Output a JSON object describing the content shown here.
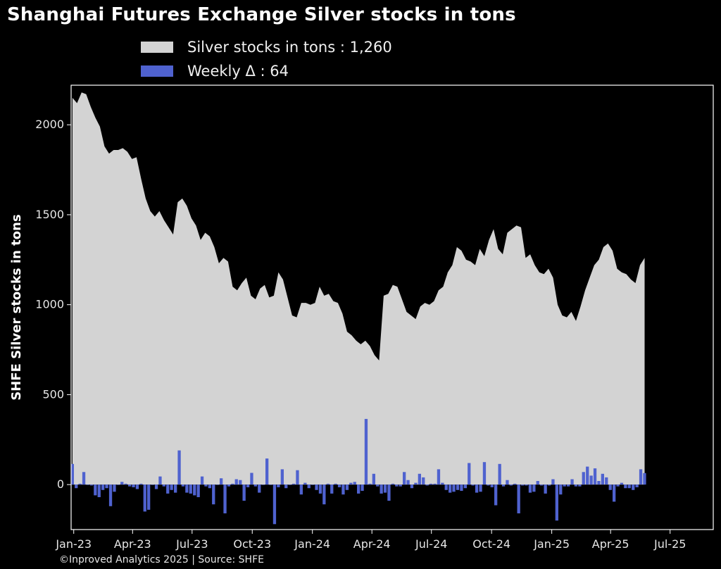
{
  "chart_data": {
    "type": "area+bar",
    "title": "Shanghai Futures Exchange Silver stocks in tons",
    "ylabel": "SHFE Silver stocks in tons",
    "ylim": [
      -250,
      2220
    ],
    "yticks": [
      0,
      500,
      1000,
      1500,
      2000
    ],
    "x_tick_labels": [
      "Jan-23",
      "Apr-23",
      "Jul-23",
      "Oct-23",
      "Jan-24",
      "Apr-24",
      "Jul-24",
      "Oct-24",
      "Jan-25",
      "Apr-25",
      "Jul-25"
    ],
    "x_tick_dates": [
      "2023-01-01",
      "2023-04-01",
      "2023-07-01",
      "2023-10-01",
      "2024-01-01",
      "2024-04-01",
      "2024-07-01",
      "2024-10-01",
      "2025-01-01",
      "2025-04-01",
      "2025-07-01"
    ],
    "x_range": [
      "2022-12-28",
      "2025-09-05"
    ],
    "series": [
      {
        "name": "Silver stocks in tons",
        "legend": "Silver stocks in tons : 1,260",
        "color": "#d3d3d3",
        "points": [
          [
            "2022-12-30",
            2150
          ],
          [
            "2023-01-06",
            2120
          ],
          [
            "2023-01-13",
            2180
          ],
          [
            "2023-01-20",
            2170
          ],
          [
            "2023-01-27",
            2100
          ],
          [
            "2023-02-03",
            2040
          ],
          [
            "2023-02-10",
            1990
          ],
          [
            "2023-02-17",
            1880
          ],
          [
            "2023-02-24",
            1840
          ],
          [
            "2023-03-03",
            1860
          ],
          [
            "2023-03-10",
            1860
          ],
          [
            "2023-03-17",
            1870
          ],
          [
            "2023-03-24",
            1850
          ],
          [
            "2023-03-31",
            1810
          ],
          [
            "2023-04-07",
            1820
          ],
          [
            "2023-04-14",
            1700
          ],
          [
            "2023-04-21",
            1590
          ],
          [
            "2023-04-28",
            1520
          ],
          [
            "2023-05-05",
            1490
          ],
          [
            "2023-05-12",
            1520
          ],
          [
            "2023-05-19",
            1470
          ],
          [
            "2023-05-26",
            1430
          ],
          [
            "2023-06-02",
            1390
          ],
          [
            "2023-06-09",
            1570
          ],
          [
            "2023-06-16",
            1590
          ],
          [
            "2023-06-23",
            1550
          ],
          [
            "2023-06-30",
            1480
          ],
          [
            "2023-07-07",
            1440
          ],
          [
            "2023-07-14",
            1360
          ],
          [
            "2023-07-21",
            1400
          ],
          [
            "2023-07-28",
            1380
          ],
          [
            "2023-08-04",
            1320
          ],
          [
            "2023-08-11",
            1230
          ],
          [
            "2023-08-18",
            1260
          ],
          [
            "2023-08-25",
            1240
          ],
          [
            "2023-09-01",
            1100
          ],
          [
            "2023-09-08",
            1080
          ],
          [
            "2023-09-15",
            1120
          ],
          [
            "2023-09-22",
            1150
          ],
          [
            "2023-09-29",
            1050
          ],
          [
            "2023-10-06",
            1030
          ],
          [
            "2023-10-13",
            1090
          ],
          [
            "2023-10-20",
            1110
          ],
          [
            "2023-10-27",
            1040
          ],
          [
            "2023-11-03",
            1050
          ],
          [
            "2023-11-10",
            1180
          ],
          [
            "2023-11-17",
            1140
          ],
          [
            "2023-11-24",
            1040
          ],
          [
            "2023-12-01",
            940
          ],
          [
            "2023-12-08",
            930
          ],
          [
            "2023-12-15",
            1010
          ],
          [
            "2023-12-22",
            1010
          ],
          [
            "2023-12-29",
            1000
          ],
          [
            "2024-01-05",
            1010
          ],
          [
            "2024-01-12",
            1100
          ],
          [
            "2024-01-19",
            1050
          ],
          [
            "2024-01-26",
            1060
          ],
          [
            "2024-02-02",
            1020
          ],
          [
            "2024-02-09",
            1010
          ],
          [
            "2024-02-16",
            950
          ],
          [
            "2024-02-23",
            850
          ],
          [
            "2024-03-01",
            830
          ],
          [
            "2024-03-08",
            800
          ],
          [
            "2024-03-15",
            780
          ],
          [
            "2024-03-22",
            800
          ],
          [
            "2024-03-29",
            770
          ],
          [
            "2024-04-05",
            720
          ],
          [
            "2024-04-12",
            690
          ],
          [
            "2024-04-19",
            1050
          ],
          [
            "2024-04-26",
            1060
          ],
          [
            "2024-05-03",
            1110
          ],
          [
            "2024-05-10",
            1100
          ],
          [
            "2024-05-17",
            1030
          ],
          [
            "2024-05-24",
            960
          ],
          [
            "2024-05-31",
            940
          ],
          [
            "2024-06-07",
            920
          ],
          [
            "2024-06-14",
            990
          ],
          [
            "2024-06-21",
            1010
          ],
          [
            "2024-06-28",
            1000
          ],
          [
            "2024-07-05",
            1020
          ],
          [
            "2024-07-12",
            1080
          ],
          [
            "2024-07-19",
            1100
          ],
          [
            "2024-07-26",
            1180
          ],
          [
            "2024-08-02",
            1220
          ],
          [
            "2024-08-09",
            1320
          ],
          [
            "2024-08-16",
            1300
          ],
          [
            "2024-08-23",
            1250
          ],
          [
            "2024-08-30",
            1240
          ],
          [
            "2024-09-06",
            1220
          ],
          [
            "2024-09-13",
            1310
          ],
          [
            "2024-09-20",
            1270
          ],
          [
            "2024-09-27",
            1360
          ],
          [
            "2024-10-04",
            1420
          ],
          [
            "2024-10-11",
            1310
          ],
          [
            "2024-10-18",
            1280
          ],
          [
            "2024-10-25",
            1400
          ],
          [
            "2024-11-01",
            1420
          ],
          [
            "2024-11-08",
            1440
          ],
          [
            "2024-11-15",
            1430
          ],
          [
            "2024-11-22",
            1260
          ],
          [
            "2024-11-29",
            1280
          ],
          [
            "2024-12-06",
            1220
          ],
          [
            "2024-12-13",
            1180
          ],
          [
            "2024-12-20",
            1170
          ],
          [
            "2024-12-27",
            1200
          ],
          [
            "2025-01-03",
            1150
          ],
          [
            "2025-01-10",
            1000
          ],
          [
            "2025-01-17",
            940
          ],
          [
            "2025-01-24",
            930
          ],
          [
            "2025-01-31",
            960
          ],
          [
            "2025-02-07",
            910
          ],
          [
            "2025-02-14",
            990
          ],
          [
            "2025-02-21",
            1080
          ],
          [
            "2025-02-28",
            1150
          ],
          [
            "2025-03-07",
            1220
          ],
          [
            "2025-03-14",
            1250
          ],
          [
            "2025-03-21",
            1320
          ],
          [
            "2025-03-28",
            1340
          ],
          [
            "2025-04-04",
            1300
          ],
          [
            "2025-04-11",
            1200
          ],
          [
            "2025-04-18",
            1180
          ],
          [
            "2025-04-25",
            1170
          ],
          [
            "2025-05-02",
            1140
          ],
          [
            "2025-05-09",
            1120
          ],
          [
            "2025-05-16",
            1220
          ],
          [
            "2025-05-23",
            1260
          ]
        ]
      },
      {
        "name": "Weekly Δ",
        "legend": "Weekly Δ : 64",
        "color": "#4f62cf",
        "values": [
          115,
          -20,
          5,
          70,
          0,
          -5,
          -60,
          -70,
          -30,
          -20,
          -120,
          -40,
          0,
          15,
          5,
          -10,
          -15,
          -25,
          5,
          -150,
          -140,
          0,
          -25,
          45,
          -10,
          -50,
          -30,
          -45,
          190,
          -10,
          -45,
          -50,
          -60,
          -70,
          45,
          -10,
          -20,
          -110,
          0,
          35,
          -160,
          -10,
          5,
          30,
          25,
          -90,
          -15,
          65,
          -10,
          -45,
          0,
          145,
          0,
          -220,
          -15,
          85,
          -20,
          0,
          5,
          80,
          -55,
          10,
          -20,
          0,
          -30,
          -50,
          -110,
          5,
          -50,
          5,
          -15,
          -55,
          -30,
          10,
          15,
          -50,
          -35,
          365,
          5,
          60,
          -10,
          -50,
          -45,
          -90,
          5,
          -10,
          -10,
          70,
          25,
          -20,
          10,
          60,
          40,
          -5,
          5,
          5,
          85,
          10,
          -30,
          -45,
          -40,
          -30,
          -35,
          -20,
          120,
          -5,
          -45,
          -40,
          125,
          -5,
          -15,
          -115,
          115,
          -10,
          25,
          -5,
          5,
          -160,
          -5,
          -5,
          -45,
          -40,
          20,
          -5,
          -50,
          -5,
          30,
          -200,
          -55,
          -10,
          -10,
          30,
          -10,
          -10,
          70,
          100,
          50,
          90,
          20,
          60,
          40,
          -30,
          -95,
          -10,
          10,
          -20,
          -20,
          -30,
          -15,
          85,
          64
        ]
      }
    ],
    "legend_position": "top-left",
    "grid": false,
    "credit": "©Inproved Analytics 2025 | Source: SHFE"
  }
}
